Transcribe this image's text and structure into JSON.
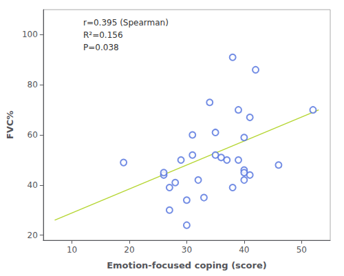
{
  "chart_data": {
    "type": "scatter",
    "xlabel": "Emotion-focused coping (score)",
    "ylabel": "FVC%",
    "annotation": [
      "r=0.395 (Spearman)",
      "R²=0.156",
      "P=0.038"
    ],
    "series": [
      {
        "type": "scatter",
        "marker": "emptyCircle",
        "x": [
          19,
          26,
          26,
          27,
          27,
          28,
          29,
          30,
          30,
          31,
          31,
          32,
          33,
          34,
          35,
          35,
          36,
          37,
          38,
          38,
          39,
          39,
          40,
          40,
          40,
          40,
          41,
          41,
          42,
          46,
          52
        ],
        "values": [
          49,
          44,
          45,
          30,
          39,
          41,
          50,
          24,
          34,
          52,
          60,
          42,
          35,
          73,
          61,
          52,
          51,
          50,
          39,
          91,
          70,
          50,
          46,
          45,
          59,
          42,
          67,
          44,
          86,
          48,
          70
        ]
      },
      {
        "type": "line",
        "line_style": "solid",
        "x": [
          7,
          53
        ],
        "values": [
          26.0,
          70.0
        ]
      }
    ],
    "xlim": [
      5,
      55
    ],
    "ylim": [
      18,
      110
    ],
    "xticks": [
      10,
      20,
      30,
      40,
      50
    ],
    "yticks": [
      20,
      40,
      60,
      80,
      100
    ],
    "grid": false
  }
}
